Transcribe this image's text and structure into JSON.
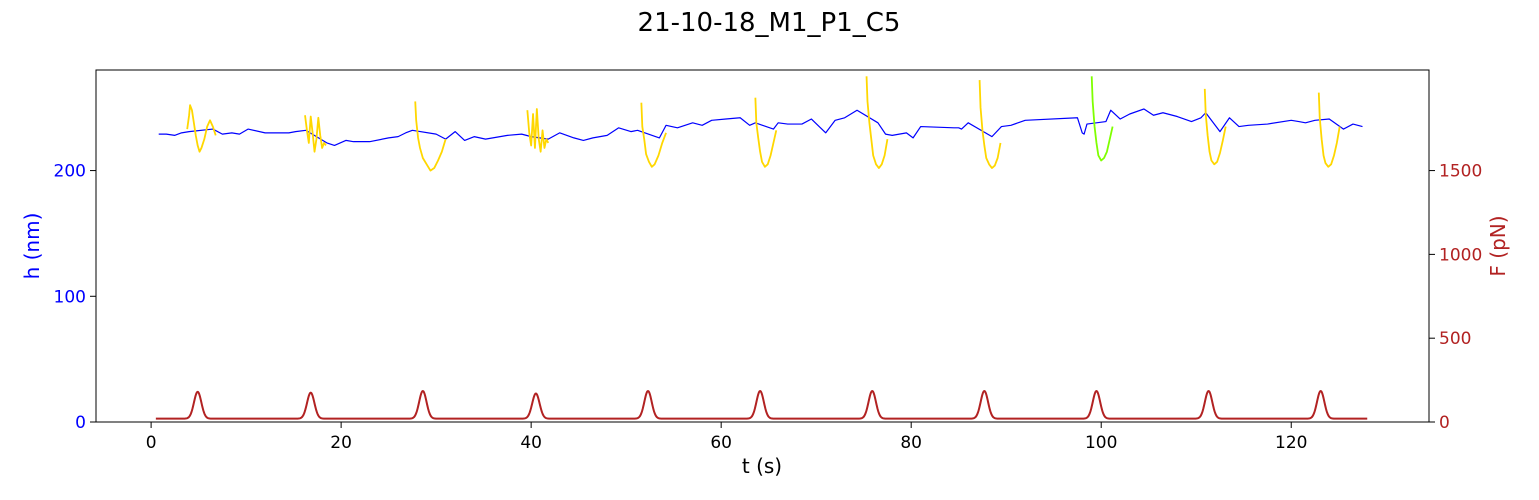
{
  "chart_data": {
    "type": "line",
    "title": "21-10-18_M1_P1_C5",
    "xlabel": "t (s)",
    "ylabel_left": "h (nm)",
    "ylabel_right": "F (pN)",
    "xlim": [
      -5.8,
      134.5
    ],
    "ylim_left": [
      0,
      280
    ],
    "ylim_right": [
      0,
      2100
    ],
    "xticks": [
      0,
      20,
      40,
      60,
      80,
      100,
      120
    ],
    "yticks_left": [
      0,
      100,
      200
    ],
    "yticks_right": [
      0,
      500,
      1000,
      1500
    ],
    "colors": {
      "height": "#0000ff",
      "force": "#b22222",
      "segment_yellow": "#ffd700",
      "segment_green": "#7fff00",
      "left_axis": "#0000ff",
      "right_axis": "#b22222"
    },
    "grid": false,
    "series": [
      {
        "color": "#0000ff",
        "axis": "left",
        "x": [
          0.8,
          1.6,
          2.5,
          3.2,
          4.0,
          6.5,
          7.5,
          8.5,
          9.3,
          10.2,
          12.0,
          13.5,
          14.5,
          15.2,
          16.3,
          18.5,
          19.3,
          20.5,
          21.3,
          23.0,
          25.0,
          26.0,
          26.8,
          27.5,
          30.0,
          31.0,
          32.0,
          33.0,
          34.0,
          35.2,
          37.5,
          39.0,
          39.5,
          40.0,
          41.8,
          43.0,
          44.5,
          45.5,
          46.5,
          48.0,
          49.2,
          50.5,
          51.2,
          53.5,
          54.2,
          55.4,
          57.0,
          58.0,
          59.0,
          60.5,
          62.0,
          63.0,
          63.6,
          65.5,
          66.0,
          67.0,
          68.5,
          69.5,
          71.0,
          72.0,
          73.0,
          74.3,
          76.5,
          77.3,
          78.0,
          79.5,
          80.2,
          81.0,
          84.5,
          85.0,
          85.3,
          86.0,
          88.5,
          89.5,
          90.5,
          92.0,
          97.5,
          98.0,
          98.2,
          98.5,
          100.5,
          101.0,
          102.0,
          103.0,
          104.5,
          105.5,
          106.5,
          108.0,
          109.5,
          110.5,
          111.0,
          112.5,
          113.5,
          114.5,
          115.5,
          117.5,
          120.0,
          120.8,
          121.5,
          122.5,
          124.0,
          125.5,
          126.5,
          127.5
        ],
        "values": [
          229,
          229,
          228,
          230,
          231,
          233,
          229,
          230,
          229,
          233,
          230,
          230,
          230,
          231,
          232,
          222,
          220,
          224,
          223,
          223,
          226,
          227,
          230,
          232,
          229,
          225,
          231,
          224,
          227,
          225,
          228,
          229,
          228,
          227,
          225,
          230,
          226,
          224,
          226,
          228,
          234,
          231,
          232,
          226,
          236,
          234,
          238,
          236,
          240,
          241,
          242,
          236,
          238,
          233,
          238,
          237,
          237,
          241,
          230,
          240,
          242,
          248,
          238,
          229,
          228,
          230,
          226,
          235,
          234,
          234,
          233,
          238,
          227,
          235,
          236,
          240,
          242,
          230,
          229,
          237,
          239,
          248,
          241,
          245,
          249,
          244,
          246,
          243,
          239,
          242,
          246,
          231,
          242,
          235,
          236,
          237,
          240,
          239,
          238,
          240,
          241,
          233,
          237,
          235
        ]
      },
      {
        "color": "#ffd700",
        "axis": "left",
        "x": [
          3.8,
          4.0,
          4.1,
          4.3,
          4.5,
          4.7,
          4.9,
          5.1,
          5.3,
          5.6,
          5.9,
          6.2,
          6.5,
          6.8
        ],
        "values": [
          233,
          244,
          252,
          248,
          238,
          228,
          220,
          215,
          218,
          225,
          235,
          240,
          235,
          228
        ]
      },
      {
        "color": "#ffd700",
        "axis": "left",
        "x": [
          16.2,
          16.4,
          16.6,
          16.8,
          17.0,
          17.2,
          17.4,
          17.6,
          17.8,
          18.0,
          18.2,
          18.4
        ],
        "values": [
          244,
          232,
          222,
          243,
          230,
          215,
          225,
          242,
          228,
          218,
          222,
          220
        ]
      },
      {
        "color": "#ffd700",
        "axis": "left",
        "x": [
          27.8,
          27.9,
          28.1,
          28.3,
          28.6,
          29.0,
          29.4,
          29.8,
          30.2,
          30.6,
          31.0
        ],
        "values": [
          255,
          240,
          226,
          218,
          210,
          205,
          200,
          202,
          208,
          215,
          225
        ]
      },
      {
        "color": "#ffd700",
        "axis": "left",
        "x": [
          39.6,
          39.8,
          40.0,
          40.2,
          40.4,
          40.6,
          40.8,
          41.0,
          41.2,
          41.4,
          41.6,
          41.8
        ],
        "values": [
          248,
          230,
          220,
          245,
          218,
          249,
          225,
          215,
          232,
          218,
          225,
          222
        ]
      },
      {
        "color": "#ffd700",
        "axis": "left",
        "x": [
          51.6,
          51.7,
          51.9,
          52.1,
          52.4,
          52.7,
          53.0,
          53.4,
          53.8,
          54.2
        ],
        "values": [
          254,
          235,
          225,
          213,
          207,
          203,
          205,
          212,
          222,
          230
        ]
      },
      {
        "color": "#ffd700",
        "axis": "left",
        "x": [
          63.6,
          63.7,
          63.9,
          64.1,
          64.3,
          64.6,
          64.9,
          65.2,
          65.5,
          65.8
        ],
        "values": [
          258,
          238,
          226,
          215,
          207,
          203,
          205,
          212,
          222,
          232
        ]
      },
      {
        "color": "#ffd700",
        "axis": "left",
        "x": [
          75.3,
          75.4,
          75.6,
          75.8,
          76.0,
          76.3,
          76.6,
          76.9,
          77.2,
          77.5
        ],
        "values": [
          275,
          255,
          238,
          225,
          212,
          205,
          202,
          205,
          212,
          225
        ]
      },
      {
        "color": "#ffd700",
        "axis": "left",
        "x": [
          87.2,
          87.3,
          87.5,
          87.7,
          87.9,
          88.2,
          88.5,
          88.8,
          89.1,
          89.4
        ],
        "values": [
          272,
          250,
          232,
          220,
          210,
          205,
          202,
          204,
          210,
          222
        ]
      },
      {
        "color": "#7fff00",
        "axis": "left",
        "x": [
          99.0,
          99.1,
          99.3,
          99.5,
          99.7,
          100.0,
          100.3,
          100.6,
          100.9,
          101.2
        ],
        "values": [
          275,
          255,
          235,
          222,
          212,
          208,
          210,
          215,
          225,
          235
        ]
      },
      {
        "color": "#ffd700",
        "axis": "left",
        "x": [
          110.9,
          111.0,
          111.2,
          111.4,
          111.6,
          111.9,
          112.2,
          112.5,
          112.8,
          113.1
        ],
        "values": [
          265,
          245,
          228,
          215,
          208,
          205,
          207,
          214,
          224,
          235
        ]
      },
      {
        "color": "#ffd700",
        "axis": "left",
        "x": [
          122.9,
          123.0,
          123.2,
          123.4,
          123.6,
          123.9,
          124.2,
          124.5,
          124.8,
          125.1
        ],
        "values": [
          262,
          242,
          225,
          212,
          206,
          203,
          205,
          212,
          222,
          235
        ]
      },
      {
        "color": "#b22222",
        "axis": "right",
        "baseline": 20,
        "peak_width": 0.55,
        "x_range": [
          0.5,
          128.0
        ],
        "peaks": [
          {
            "x": 4.9,
            "y": 180
          },
          {
            "x": 16.8,
            "y": 175
          },
          {
            "x": 28.6,
            "y": 185
          },
          {
            "x": 40.5,
            "y": 170
          },
          {
            "x": 52.3,
            "y": 185
          },
          {
            "x": 64.1,
            "y": 185
          },
          {
            "x": 75.9,
            "y": 185
          },
          {
            "x": 87.7,
            "y": 185
          },
          {
            "x": 99.5,
            "y": 185
          },
          {
            "x": 111.3,
            "y": 185
          },
          {
            "x": 123.1,
            "y": 185
          }
        ]
      }
    ]
  }
}
